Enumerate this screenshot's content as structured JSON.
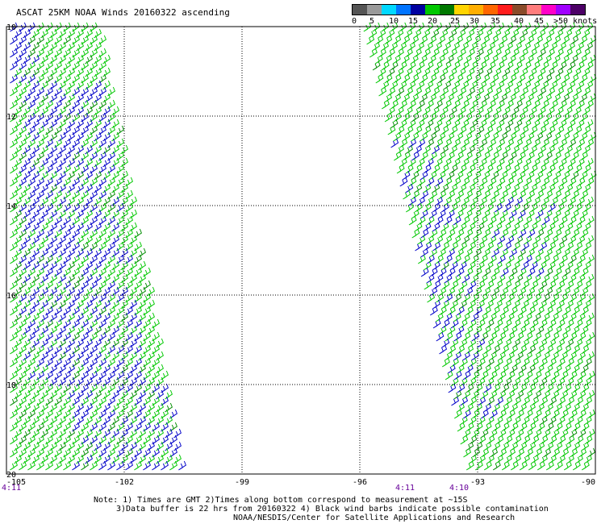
{
  "title": "ASCAT 25KM NOAA Winds 20160322 ascending",
  "legend": {
    "colors": [
      "#555555",
      "#9a9a9a",
      "#00d8ff",
      "#0074ff",
      "#0000a0",
      "#00c800",
      "#007800",
      "#ffd400",
      "#ffae00",
      "#ff6600",
      "#ff1c1c",
      "#8a4b2a",
      "#ff7c7c",
      "#ff00c8",
      "#a000ff",
      "#4c0066"
    ],
    "labels": [
      "0",
      "5",
      "10",
      "15",
      "20",
      "25",
      "30",
      "35",
      "40",
      "45",
      ">50 knots"
    ]
  },
  "axes": {
    "x_ticks": [
      "-105",
      "-102",
      "-99",
      "-96",
      "-93",
      "-90"
    ],
    "y_ticks": [
      "10",
      "12",
      "14",
      "16",
      "18",
      "20"
    ]
  },
  "swath_times": [
    "4:11",
    "4:11",
    "4:10"
  ],
  "barb_colors": {
    "light": "#00c800",
    "moderate": "#0000c8",
    "moderate_dark": "#008c00"
  },
  "notes": {
    "line1": "Note: 1) Times are GMT 2)Times along bottom correspond to measurement at ~15S",
    "line2": "3)Data buffer is 22 hrs from 20160322 4) Black wind barbs indicate possible contamination",
    "line3": "NOAA/NESDIS/Center for Satellite Applications and Research"
  }
}
